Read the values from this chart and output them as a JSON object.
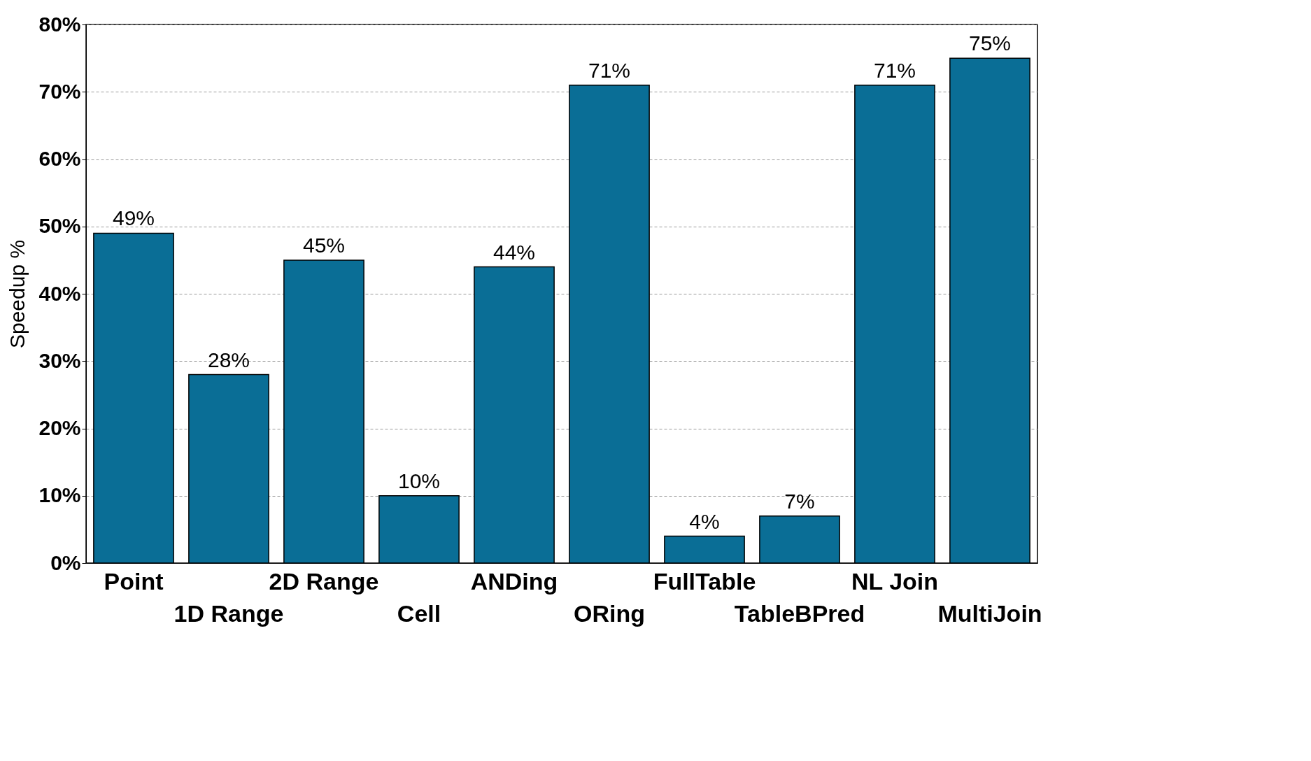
{
  "chart_data": {
    "type": "bar",
    "ylabel": "Speedup %",
    "categories": [
      "Point",
      "1D Range",
      "2D Range",
      "Cell",
      "ANDing",
      "ORing",
      "FullTable",
      "TableBPred",
      "NL Join",
      "MultiJoin"
    ],
    "values": [
      49,
      28,
      45,
      10,
      44,
      71,
      4,
      7,
      71,
      75
    ],
    "value_labels": [
      "49%",
      "28%",
      "45%",
      "10%",
      "44%",
      "71%",
      "4%",
      "7%",
      "71%",
      "75%"
    ],
    "color": "#0a6e96",
    "ylim": [
      0,
      80
    ],
    "yticks": [
      {
        "value": 0,
        "label": "0%"
      },
      {
        "value": 10,
        "label": "10%"
      },
      {
        "value": 20,
        "label": "20%"
      },
      {
        "value": 30,
        "label": "30%"
      },
      {
        "value": 40,
        "label": "40%"
      },
      {
        "value": 50,
        "label": "50%"
      },
      {
        "value": 60,
        "label": "60%"
      },
      {
        "value": 70,
        "label": "70%"
      },
      {
        "value": 80,
        "label": "80%"
      }
    ],
    "grid": "y"
  }
}
